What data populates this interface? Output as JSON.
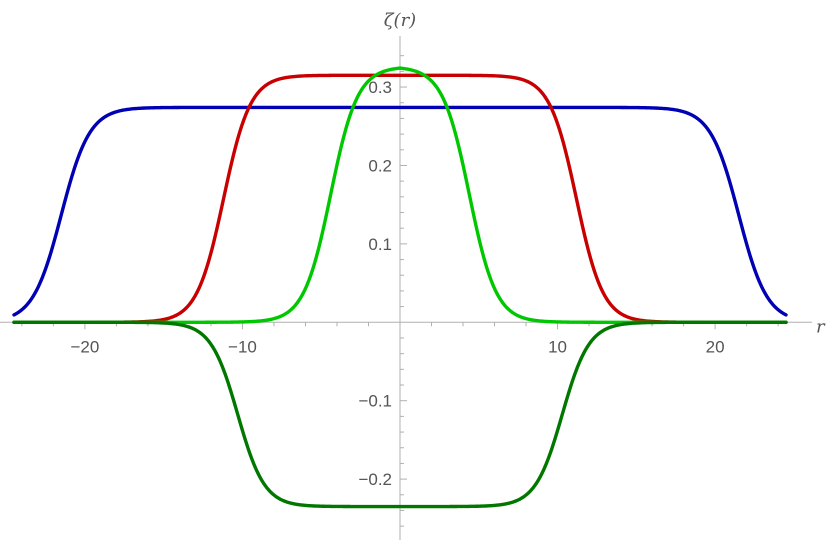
{
  "chart_data": {
    "type": "line",
    "title": "",
    "xlabel": "r",
    "ylabel": "ζ(r)",
    "xlim": [
      -24.5,
      24.5
    ],
    "ylim": [
      -0.27,
      0.36
    ],
    "grid": false,
    "x_major_ticks": [
      -20,
      -10,
      10,
      20
    ],
    "x_tick_labels": [
      "−20",
      "−10",
      "10",
      "20"
    ],
    "y_major_ticks": [
      -0.2,
      -0.1,
      0.1,
      0.2,
      0.3
    ],
    "y_tick_labels": [
      "−0.2",
      "−0.1",
      "0.1",
      "0.2",
      "0.3"
    ],
    "series": [
      {
        "color": "#0000b4",
        "shape": "plateau",
        "amplitude": 0.274,
        "half_width": 21.5,
        "transition_width": 0.9,
        "x_range": [
          -24.5,
          24.5
        ]
      },
      {
        "color": "#c80000",
        "shape": "plateau",
        "amplitude": 0.315,
        "half_width": 11.2,
        "transition_width": 0.85,
        "x_range": [
          -24.5,
          24.5
        ]
      },
      {
        "color": "#00c800",
        "shape": "plateau",
        "amplitude": 0.326,
        "half_width": 4.4,
        "transition_width": 0.85,
        "x_range": [
          -24.5,
          24.5
        ]
      },
      {
        "color": "#007800",
        "shape": "plateau",
        "amplitude": -0.235,
        "half_width": 10.3,
        "transition_width": 0.85,
        "x_range": [
          -24.5,
          24.5
        ]
      }
    ]
  }
}
